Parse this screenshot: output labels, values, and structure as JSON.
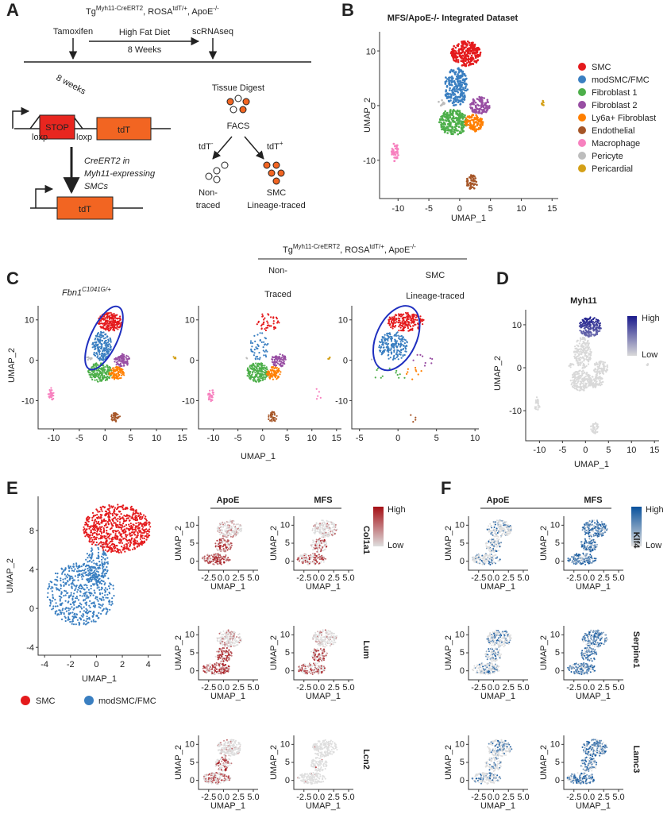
{
  "A": {
    "label": "A",
    "header": [
      "Tg",
      "Myh11-CreERT2",
      ", ROSA",
      "tdT/+",
      ", ApoE",
      "-/-"
    ],
    "tamoxifen": "Tamoxifen",
    "diet": "High Fat Diet",
    "diet_duration": "8 Weeks",
    "assay": "scRNAseq",
    "age": "8 weeks",
    "stop": "STOP",
    "reporter": "tdT",
    "loxp": "loxp",
    "cre": [
      "CreERT2 in",
      "Myh11-expressing",
      "SMCs"
    ],
    "digest": "Tissue Digest",
    "facs": "FACS",
    "neg": [
      "tdT",
      "-"
    ],
    "pos": [
      "tdT",
      "+"
    ],
    "nontraced": [
      "Non-",
      "traced"
    ],
    "traced": [
      "SMC",
      "Lineage-traced"
    ]
  },
  "B": {
    "label": "B",
    "title": "MFS/ApoE-/- Integrated Dataset",
    "xlabel": "UMAP_1",
    "ylabel": "UMAP_2",
    "xticks": [
      -10,
      -5,
      0,
      5,
      10,
      15
    ],
    "yticks": [
      -10,
      0,
      10
    ],
    "legend": [
      {
        "name": "SMC",
        "color": "#e41a1c"
      },
      {
        "name": "modSMC/FMC",
        "color": "#3a7fc1"
      },
      {
        "name": "Fibroblast 1",
        "color": "#4daf4a"
      },
      {
        "name": "Fibroblast 2",
        "color": "#984ea3"
      },
      {
        "name": "Ly6a+ Fibroblast",
        "color": "#ff7f00"
      },
      {
        "name": "Endothelial",
        "color": "#a65628"
      },
      {
        "name": "Macrophage",
        "color": "#f781bf"
      },
      {
        "name": "Pericyte",
        "color": "#bdbdbd"
      },
      {
        "name": "Pericardial",
        "color": "#d4a017"
      }
    ]
  },
  "C": {
    "label": "C",
    "genotype": [
      "Fbn1",
      "C1041G/+"
    ],
    "header": [
      "Tg",
      "Myh11-CreERT2",
      ", ROSA",
      "tdT/+",
      ", ApoE",
      "-/-"
    ],
    "nontraced": [
      "Non-",
      "Traced"
    ],
    "traced": [
      "SMC",
      "Lineage-traced"
    ],
    "xlabel": "UMAP_1",
    "ylabel": "UMAP_2",
    "yticks": [
      -10,
      0,
      10
    ],
    "xticks": [
      [
        -10,
        -5,
        0,
        5,
        10,
        15
      ],
      [
        -10,
        -5,
        0,
        5,
        10,
        15
      ],
      [
        -5,
        0,
        5,
        10
      ]
    ],
    "ellipse_color": "#1f2fbf"
  },
  "D": {
    "label": "D",
    "title": "Myh11",
    "high": "High",
    "low": "Low",
    "high_color": "#1a1a8c",
    "low_color": "#d9d9d9",
    "xlabel": "UMAP_1",
    "ylabel": "UMAP_2",
    "xticks": [
      -10,
      -5,
      0,
      5,
      10,
      15
    ],
    "yticks": [
      -10,
      0,
      10
    ]
  },
  "E": {
    "label": "E",
    "xlabel": "UMAP_1",
    "ylabel": "UMAP_2",
    "xticks": [
      -4,
      -2,
      0,
      2,
      4
    ],
    "yticks": [
      -4,
      0,
      4,
      8
    ],
    "legend": [
      {
        "name": "SMC",
        "color": "#e41a1c"
      },
      {
        "name": "modSMC/FMC",
        "color": "#3a7fc1"
      }
    ],
    "columns": [
      "ApoE",
      "MFS"
    ],
    "genes": [
      "Col1a1",
      "Lum",
      "Lcn2"
    ],
    "high": "High",
    "low": "Low",
    "high_color": "#a50f15",
    "low_color": "#dedede"
  },
  "F": {
    "label": "F",
    "columns": [
      "ApoE",
      "MFS"
    ],
    "genes": [
      "Klf4",
      "Serpine1",
      "Lamc3"
    ],
    "high": "High",
    "low": "Low",
    "high_color": "#08519c",
    "low_color": "#dedede"
  },
  "small_axes": {
    "xlabel": "UMAP_1",
    "ylabel": "UMAP_2",
    "yticks": [
      0,
      5,
      10
    ],
    "xticks": [
      {
        "value": -2.5,
        "label": "-2.5"
      },
      {
        "value": 0,
        "label": "0.0"
      },
      {
        "value": 2.5,
        "label": "2.5"
      },
      {
        "value": 5,
        "label": "5.0"
      }
    ]
  }
}
